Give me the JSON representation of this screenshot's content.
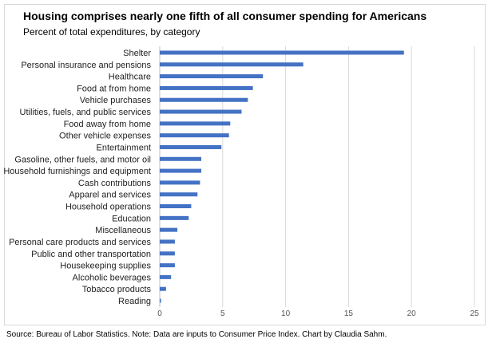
{
  "chart_data": {
    "type": "bar",
    "orientation": "horizontal",
    "title": "Housing comprises nearly one fifth of all consumer spending for Americans",
    "subtitle": "Percent of total expenditures, by category",
    "categories": [
      "Shelter",
      "Personal insurance and pensions",
      "Healthcare",
      "Food at from home",
      "Vehicle purchases",
      "Utilities, fuels, and public services",
      "Food away from home",
      "Other vehicle expenses",
      "Entertainment",
      "Gasoline, other fuels, and motor oil",
      "Household furnishings and equipment",
      "Cash contributions",
      "Apparel and services",
      "Household operations",
      "Education",
      "Miscellaneous",
      "Personal care products and services",
      "Public and other transportation",
      "Housekeeping supplies",
      "Alcoholic beverages",
      "Tobacco products",
      "Reading"
    ],
    "values": [
      19.4,
      11.4,
      8.2,
      7.4,
      7.0,
      6.5,
      5.6,
      5.5,
      4.9,
      3.3,
      3.3,
      3.2,
      3.0,
      2.5,
      2.3,
      1.4,
      1.2,
      1.2,
      1.2,
      0.9,
      0.5,
      0.1
    ],
    "xlim": [
      0,
      25
    ],
    "xticks": [
      "0",
      "5",
      "10",
      "15",
      "20",
      "25"
    ],
    "grid": true,
    "bar_color": "#4472c4"
  },
  "source": "Source: Bureau of Labor Statistics. Note: Data are inputs to Consumer Price Index. Chart by Claudia Sahm."
}
